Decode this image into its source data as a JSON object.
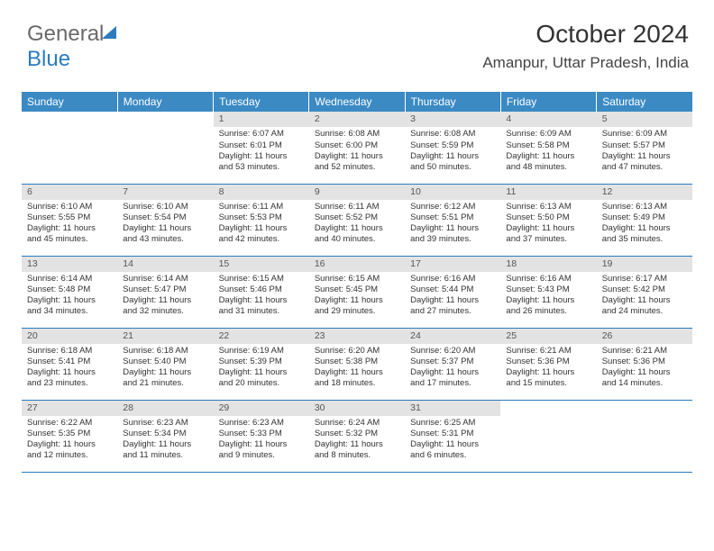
{
  "brand": {
    "part1": "General",
    "part2": "Blue"
  },
  "header": {
    "month_title": "October 2024",
    "location": "Amanpur, Uttar Pradesh, India"
  },
  "colors": {
    "header_bg": "#3b8ac4",
    "daynum_bg": "#e3e3e3",
    "rule": "#2b7bbf"
  },
  "days_of_week": [
    "Sunday",
    "Monday",
    "Tuesday",
    "Wednesday",
    "Thursday",
    "Friday",
    "Saturday"
  ],
  "weeks": [
    [
      {
        "n": "",
        "sr": "",
        "ss": "",
        "dl": "",
        "empty": true
      },
      {
        "n": "",
        "sr": "",
        "ss": "",
        "dl": "",
        "empty": true
      },
      {
        "n": "1",
        "sr": "Sunrise: 6:07 AM",
        "ss": "Sunset: 6:01 PM",
        "dl": "Daylight: 11 hours and 53 minutes."
      },
      {
        "n": "2",
        "sr": "Sunrise: 6:08 AM",
        "ss": "Sunset: 6:00 PM",
        "dl": "Daylight: 11 hours and 52 minutes."
      },
      {
        "n": "3",
        "sr": "Sunrise: 6:08 AM",
        "ss": "Sunset: 5:59 PM",
        "dl": "Daylight: 11 hours and 50 minutes."
      },
      {
        "n": "4",
        "sr": "Sunrise: 6:09 AM",
        "ss": "Sunset: 5:58 PM",
        "dl": "Daylight: 11 hours and 48 minutes."
      },
      {
        "n": "5",
        "sr": "Sunrise: 6:09 AM",
        "ss": "Sunset: 5:57 PM",
        "dl": "Daylight: 11 hours and 47 minutes."
      }
    ],
    [
      {
        "n": "6",
        "sr": "Sunrise: 6:10 AM",
        "ss": "Sunset: 5:55 PM",
        "dl": "Daylight: 11 hours and 45 minutes."
      },
      {
        "n": "7",
        "sr": "Sunrise: 6:10 AM",
        "ss": "Sunset: 5:54 PM",
        "dl": "Daylight: 11 hours and 43 minutes."
      },
      {
        "n": "8",
        "sr": "Sunrise: 6:11 AM",
        "ss": "Sunset: 5:53 PM",
        "dl": "Daylight: 11 hours and 42 minutes."
      },
      {
        "n": "9",
        "sr": "Sunrise: 6:11 AM",
        "ss": "Sunset: 5:52 PM",
        "dl": "Daylight: 11 hours and 40 minutes."
      },
      {
        "n": "10",
        "sr": "Sunrise: 6:12 AM",
        "ss": "Sunset: 5:51 PM",
        "dl": "Daylight: 11 hours and 39 minutes."
      },
      {
        "n": "11",
        "sr": "Sunrise: 6:13 AM",
        "ss": "Sunset: 5:50 PM",
        "dl": "Daylight: 11 hours and 37 minutes."
      },
      {
        "n": "12",
        "sr": "Sunrise: 6:13 AM",
        "ss": "Sunset: 5:49 PM",
        "dl": "Daylight: 11 hours and 35 minutes."
      }
    ],
    [
      {
        "n": "13",
        "sr": "Sunrise: 6:14 AM",
        "ss": "Sunset: 5:48 PM",
        "dl": "Daylight: 11 hours and 34 minutes."
      },
      {
        "n": "14",
        "sr": "Sunrise: 6:14 AM",
        "ss": "Sunset: 5:47 PM",
        "dl": "Daylight: 11 hours and 32 minutes."
      },
      {
        "n": "15",
        "sr": "Sunrise: 6:15 AM",
        "ss": "Sunset: 5:46 PM",
        "dl": "Daylight: 11 hours and 31 minutes."
      },
      {
        "n": "16",
        "sr": "Sunrise: 6:15 AM",
        "ss": "Sunset: 5:45 PM",
        "dl": "Daylight: 11 hours and 29 minutes."
      },
      {
        "n": "17",
        "sr": "Sunrise: 6:16 AM",
        "ss": "Sunset: 5:44 PM",
        "dl": "Daylight: 11 hours and 27 minutes."
      },
      {
        "n": "18",
        "sr": "Sunrise: 6:16 AM",
        "ss": "Sunset: 5:43 PM",
        "dl": "Daylight: 11 hours and 26 minutes."
      },
      {
        "n": "19",
        "sr": "Sunrise: 6:17 AM",
        "ss": "Sunset: 5:42 PM",
        "dl": "Daylight: 11 hours and 24 minutes."
      }
    ],
    [
      {
        "n": "20",
        "sr": "Sunrise: 6:18 AM",
        "ss": "Sunset: 5:41 PM",
        "dl": "Daylight: 11 hours and 23 minutes."
      },
      {
        "n": "21",
        "sr": "Sunrise: 6:18 AM",
        "ss": "Sunset: 5:40 PM",
        "dl": "Daylight: 11 hours and 21 minutes."
      },
      {
        "n": "22",
        "sr": "Sunrise: 6:19 AM",
        "ss": "Sunset: 5:39 PM",
        "dl": "Daylight: 11 hours and 20 minutes."
      },
      {
        "n": "23",
        "sr": "Sunrise: 6:20 AM",
        "ss": "Sunset: 5:38 PM",
        "dl": "Daylight: 11 hours and 18 minutes."
      },
      {
        "n": "24",
        "sr": "Sunrise: 6:20 AM",
        "ss": "Sunset: 5:37 PM",
        "dl": "Daylight: 11 hours and 17 minutes."
      },
      {
        "n": "25",
        "sr": "Sunrise: 6:21 AM",
        "ss": "Sunset: 5:36 PM",
        "dl": "Daylight: 11 hours and 15 minutes."
      },
      {
        "n": "26",
        "sr": "Sunrise: 6:21 AM",
        "ss": "Sunset: 5:36 PM",
        "dl": "Daylight: 11 hours and 14 minutes."
      }
    ],
    [
      {
        "n": "27",
        "sr": "Sunrise: 6:22 AM",
        "ss": "Sunset: 5:35 PM",
        "dl": "Daylight: 11 hours and 12 minutes."
      },
      {
        "n": "28",
        "sr": "Sunrise: 6:23 AM",
        "ss": "Sunset: 5:34 PM",
        "dl": "Daylight: 11 hours and 11 minutes."
      },
      {
        "n": "29",
        "sr": "Sunrise: 6:23 AM",
        "ss": "Sunset: 5:33 PM",
        "dl": "Daylight: 11 hours and 9 minutes."
      },
      {
        "n": "30",
        "sr": "Sunrise: 6:24 AM",
        "ss": "Sunset: 5:32 PM",
        "dl": "Daylight: 11 hours and 8 minutes."
      },
      {
        "n": "31",
        "sr": "Sunrise: 6:25 AM",
        "ss": "Sunset: 5:31 PM",
        "dl": "Daylight: 11 hours and 6 minutes."
      },
      {
        "n": "",
        "sr": "",
        "ss": "",
        "dl": "",
        "empty": true
      },
      {
        "n": "",
        "sr": "",
        "ss": "",
        "dl": "",
        "empty": true
      }
    ]
  ]
}
